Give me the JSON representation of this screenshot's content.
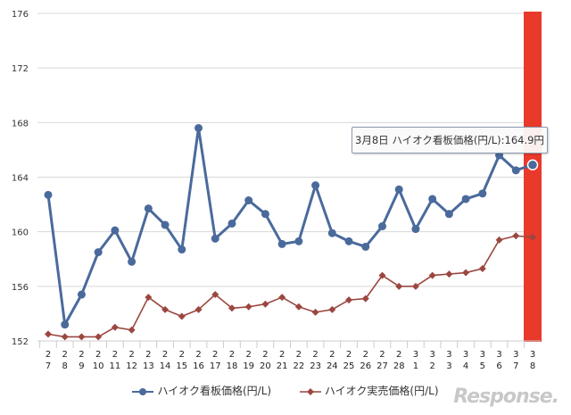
{
  "chart_data": {
    "type": "line",
    "categories": [
      "2/7",
      "2/8",
      "2/9",
      "2/10",
      "2/11",
      "2/12",
      "2/13",
      "2/14",
      "2/15",
      "2/16",
      "2/17",
      "2/18",
      "2/19",
      "2/20",
      "2/21",
      "2/22",
      "2/23",
      "2/24",
      "2/25",
      "2/26",
      "2/27",
      "2/28",
      "3/1",
      "3/2",
      "3/3",
      "3/4",
      "3/5",
      "3/6",
      "3/7",
      "3/8"
    ],
    "tick_top": [
      "2",
      "2",
      "2",
      "2",
      "2",
      "2",
      "2",
      "2",
      "2",
      "2",
      "2",
      "2",
      "2",
      "2",
      "2",
      "2",
      "2",
      "2",
      "2",
      "2",
      "2",
      "2",
      "3",
      "3",
      "3",
      "3",
      "3",
      "3",
      "3",
      "3"
    ],
    "tick_bottom": [
      "7",
      "8",
      "9",
      "10",
      "11",
      "12",
      "13",
      "14",
      "15",
      "16",
      "17",
      "18",
      "19",
      "20",
      "21",
      "22",
      "23",
      "24",
      "25",
      "26",
      "27",
      "28",
      "1",
      "2",
      "3",
      "4",
      "5",
      "6",
      "7",
      "8"
    ],
    "ylim": [
      152,
      176
    ],
    "yticks": [
      152,
      156,
      160,
      164,
      168,
      172,
      176
    ],
    "grid": true,
    "legend_position": "bottom",
    "highlight_category": "3/8",
    "highlight_color": "#e8392b",
    "series": [
      {
        "name": "ハイオク看板価格(円/L)",
        "color": "#4a6a9c",
        "marker": "circle",
        "values": [
          162.7,
          153.2,
          155.4,
          158.5,
          160.1,
          157.8,
          161.7,
          160.5,
          158.7,
          167.6,
          159.5,
          160.6,
          162.3,
          161.3,
          159.1,
          159.3,
          163.4,
          159.9,
          159.3,
          158.9,
          160.4,
          163.1,
          160.2,
          162.4,
          161.3,
          162.4,
          162.8,
          165.6,
          164.5,
          164.9
        ]
      },
      {
        "name": "ハイオク実売価格(円/L)",
        "color": "#9b4740",
        "marker": "diamond",
        "values": [
          152.5,
          152.3,
          152.3,
          152.3,
          153.0,
          152.8,
          155.2,
          154.3,
          153.8,
          154.3,
          155.4,
          154.4,
          154.5,
          154.7,
          155.2,
          154.5,
          154.1,
          154.3,
          155.0,
          155.1,
          156.8,
          156.0,
          156.0,
          156.8,
          156.9,
          157.0,
          157.3,
          159.4,
          159.7,
          159.6
        ]
      }
    ],
    "tooltip": "3月8日 ハイオク看板価格(円/L):164.9円"
  },
  "watermark": "Response."
}
